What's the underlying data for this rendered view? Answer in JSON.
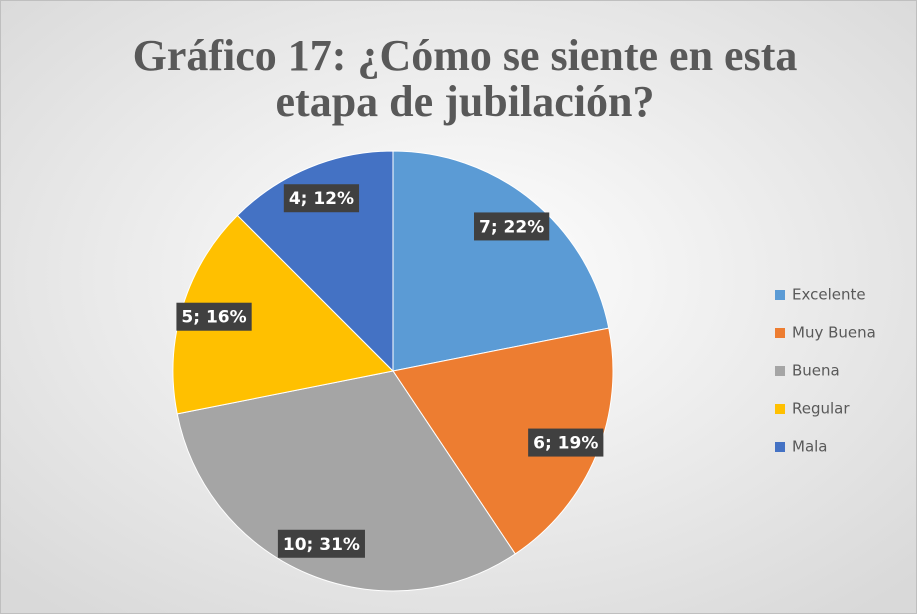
{
  "chart_data": {
    "type": "pie",
    "title": [
      "Gráfico 17: ¿Cómo se siente en esta",
      "etapa de jubilación?"
    ],
    "categories": [
      "Excelente",
      "Muy Buena",
      "Buena",
      "Regular",
      "Mala"
    ],
    "values": [
      7,
      6,
      10,
      5,
      4
    ],
    "value_labels": [
      "7; 22%",
      "6; 19%",
      "10; 31%",
      "5; 16%",
      "4; 12%"
    ],
    "colors": [
      "#5b9bd5",
      "#ed7d31",
      "#a5a5a5",
      "#ffc000",
      "#4472c4"
    ],
    "legend": "right"
  }
}
